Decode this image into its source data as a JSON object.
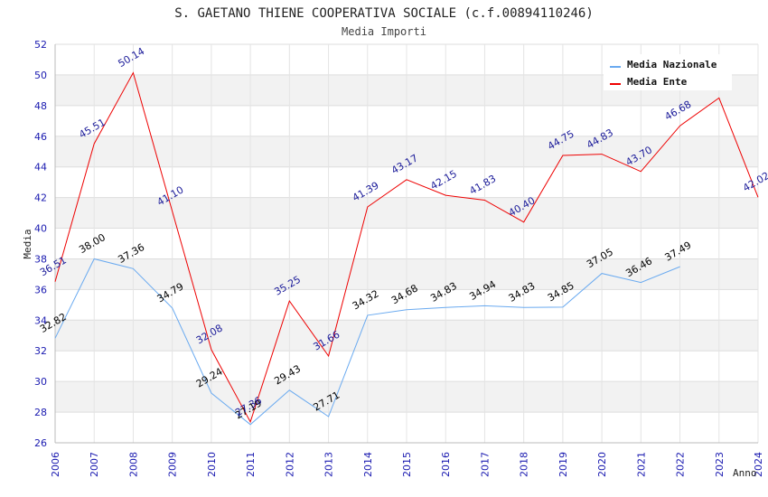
{
  "chart_data": {
    "type": "line",
    "title": "S. GAETANO THIENE COOPERATIVA SOCIALE (c.f.00894110246)",
    "subtitle": "Media Importi",
    "xlabel": "Anno",
    "ylabel": "Media",
    "ylim": [
      26,
      52
    ],
    "yticks": [
      26,
      28,
      30,
      32,
      34,
      36,
      38,
      40,
      42,
      44,
      46,
      48,
      50,
      52
    ],
    "x": [
      2006,
      2007,
      2008,
      2009,
      2010,
      2011,
      2012,
      2013,
      2014,
      2015,
      2016,
      2017,
      2018,
      2019,
      2020,
      2021,
      2022,
      2023,
      2024
    ],
    "grid": true,
    "legend_position": "top-right",
    "series": [
      {
        "name": "Media Nazionale",
        "color": "#6aaaf0",
        "label_color": "#000000",
        "values": [
          32.82,
          38.0,
          37.36,
          34.79,
          29.24,
          27.19,
          29.43,
          27.71,
          34.32,
          34.68,
          34.83,
          34.94,
          34.83,
          34.85,
          37.05,
          36.46,
          37.49,
          null,
          null
        ],
        "labels": [
          "32.82",
          "38.00",
          "37.36",
          "34.79",
          "29.24",
          "27.19",
          "29.43",
          "27.71",
          "34.32",
          "34.68",
          "34.83",
          "34.94",
          "34.83",
          "34.85",
          "37.05",
          "36.46",
          "37.49",
          "",
          ""
        ]
      },
      {
        "name": "Media Ente",
        "color": "#ee0000",
        "label_color": "#1a1a99",
        "values": [
          36.51,
          45.51,
          50.14,
          41.1,
          32.08,
          27.36,
          35.25,
          31.66,
          41.39,
          43.17,
          42.15,
          41.83,
          40.4,
          44.75,
          44.83,
          43.7,
          46.68,
          48.5,
          42.02
        ],
        "labels": [
          "36.51",
          "45.51",
          "50.14",
          "41.10",
          "32.08",
          "27.36",
          "35.25",
          "31.66",
          "41.39",
          "43.17",
          "42.15",
          "41.83",
          "40.40",
          "44.75",
          "44.83",
          "43.70",
          "46.68",
          "",
          "42.02"
        ]
      }
    ]
  }
}
